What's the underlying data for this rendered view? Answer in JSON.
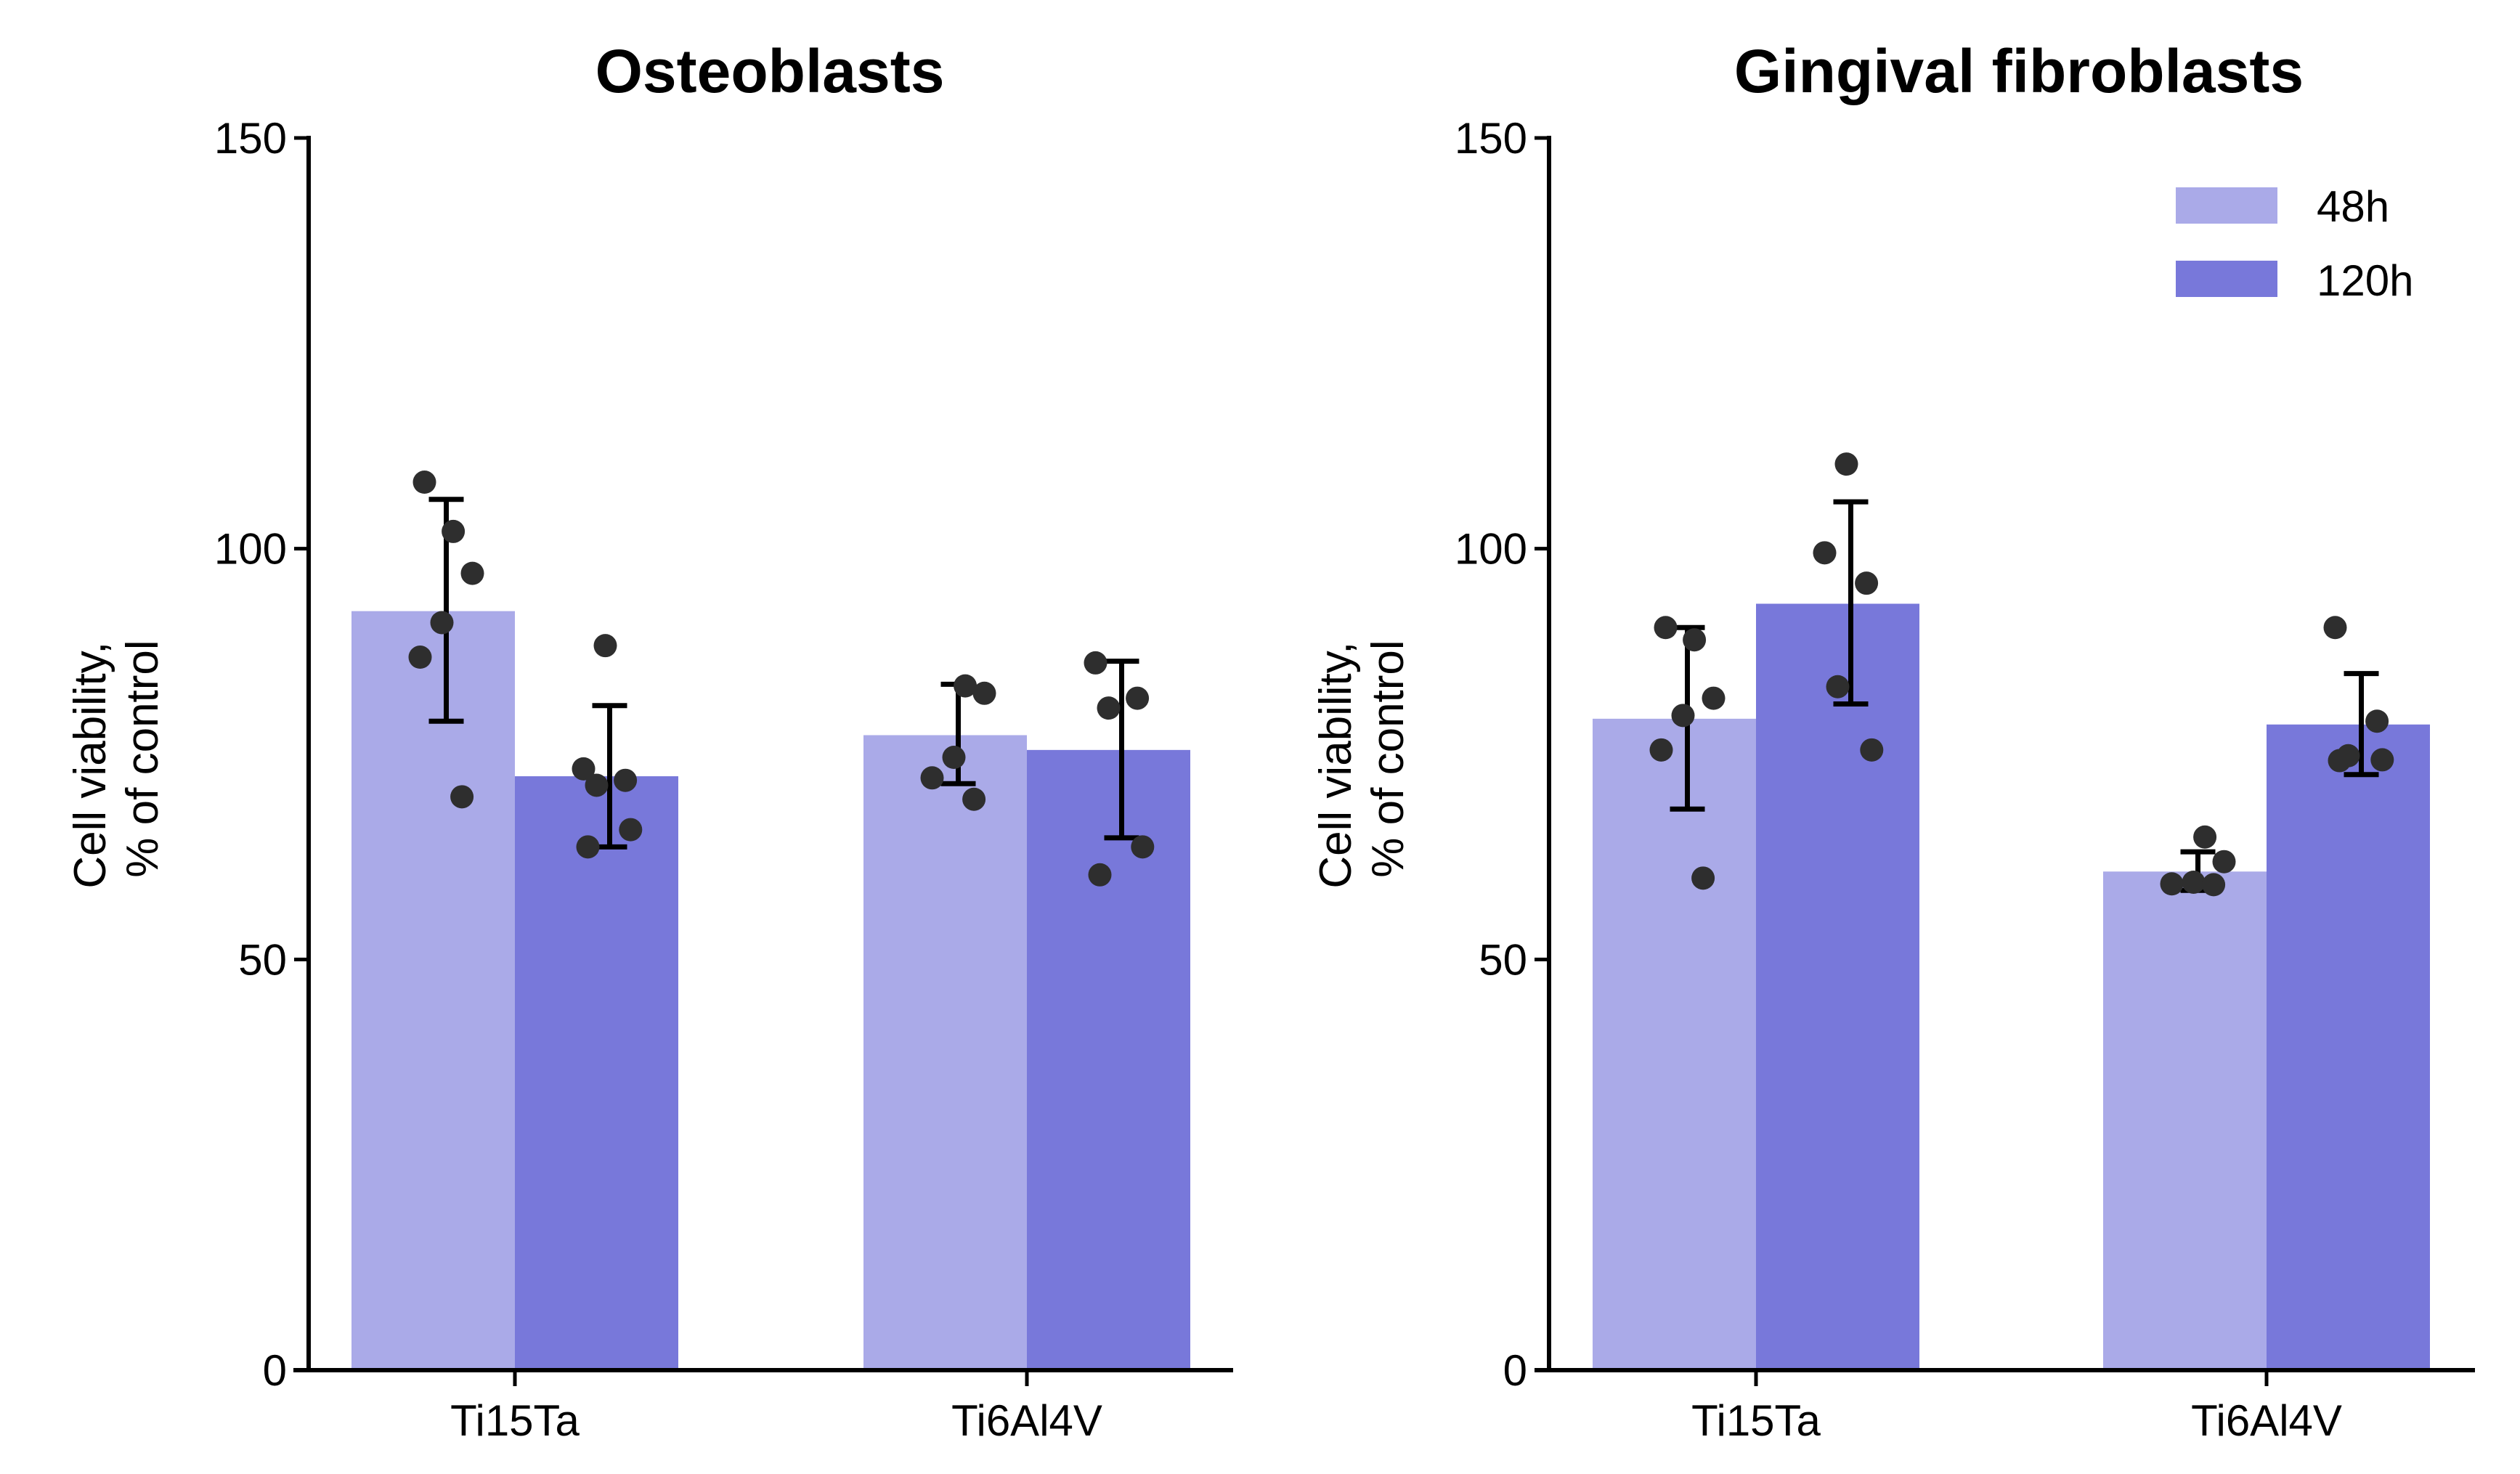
{
  "chart_data": [
    {
      "type": "bar",
      "title": "Osteoblasts",
      "xlabel": "",
      "ylabel": "Cell viability,\n% of control",
      "ylabel_lines": [
        "Cell viability,",
        "% of control"
      ],
      "ylim": [
        0,
        150
      ],
      "yticks": [
        0,
        50,
        100,
        150
      ],
      "grid": false,
      "categories": [
        "Ti15Ta",
        "Ti6Al4V"
      ],
      "series": [
        {
          "name": "48h",
          "color": "#aaaae8",
          "values": [
            92.4,
            77.3
          ],
          "error_low": [
            79.0,
            71.4
          ],
          "error_high": [
            106.0,
            83.5
          ],
          "points": [
            [
              108.1,
              102.1,
              97.0,
              91.0,
              86.8,
              69.8
            ],
            [
              83.3,
              82.4,
              74.6,
              72.1,
              69.5
            ]
          ]
        },
        {
          "name": "120h",
          "color": "#7878da",
          "values": [
            72.3,
            75.5
          ],
          "error_low": [
            63.7,
            64.8
          ],
          "error_high": [
            80.9,
            86.3
          ],
          "points": [
            [
              88.2,
              73.2,
              71.8,
              71.2,
              65.8,
              63.7
            ],
            [
              86.1,
              81.8,
              80.6,
              63.7,
              60.3
            ]
          ]
        }
      ],
      "legend": null
    },
    {
      "type": "bar",
      "title": "Gingival fibroblasts",
      "xlabel": "",
      "ylabel": "Cell viability,\n% of control",
      "ylabel_lines": [
        "Cell viability,",
        "% of control"
      ],
      "ylim": [
        0,
        150
      ],
      "yticks": [
        0,
        50,
        100,
        150
      ],
      "grid": false,
      "categories": [
        "Ti15Ta",
        "Ti6Al4V"
      ],
      "series": [
        {
          "name": "48h",
          "color": "#aaaae8",
          "values": [
            79.3,
            60.7
          ],
          "error_low": [
            68.3,
            58.4
          ],
          "error_high": [
            90.4,
            63.1
          ],
          "points": [
            [
              90.4,
              88.9,
              81.8,
              79.7,
              75.5,
              59.9
            ],
            [
              64.9,
              61.9,
              59.4,
              59.2,
              59.1
            ]
          ]
        },
        {
          "name": "120h",
          "color": "#7878da",
          "values": [
            93.3,
            78.6
          ],
          "error_low": [
            81.1,
            72.5
          ],
          "error_high": [
            105.7,
            84.8
          ],
          "points": [
            [
              110.3,
              99.5,
              95.8,
              83.2,
              75.5
            ],
            [
              90.4,
              79.0,
              74.8,
              74.3,
              74.2
            ]
          ]
        }
      ],
      "legend": {
        "placement": "top-right",
        "entries": [
          {
            "label": "48h",
            "color": "#aaaae8"
          },
          {
            "label": "120h",
            "color": "#7878da"
          }
        ]
      }
    }
  ]
}
